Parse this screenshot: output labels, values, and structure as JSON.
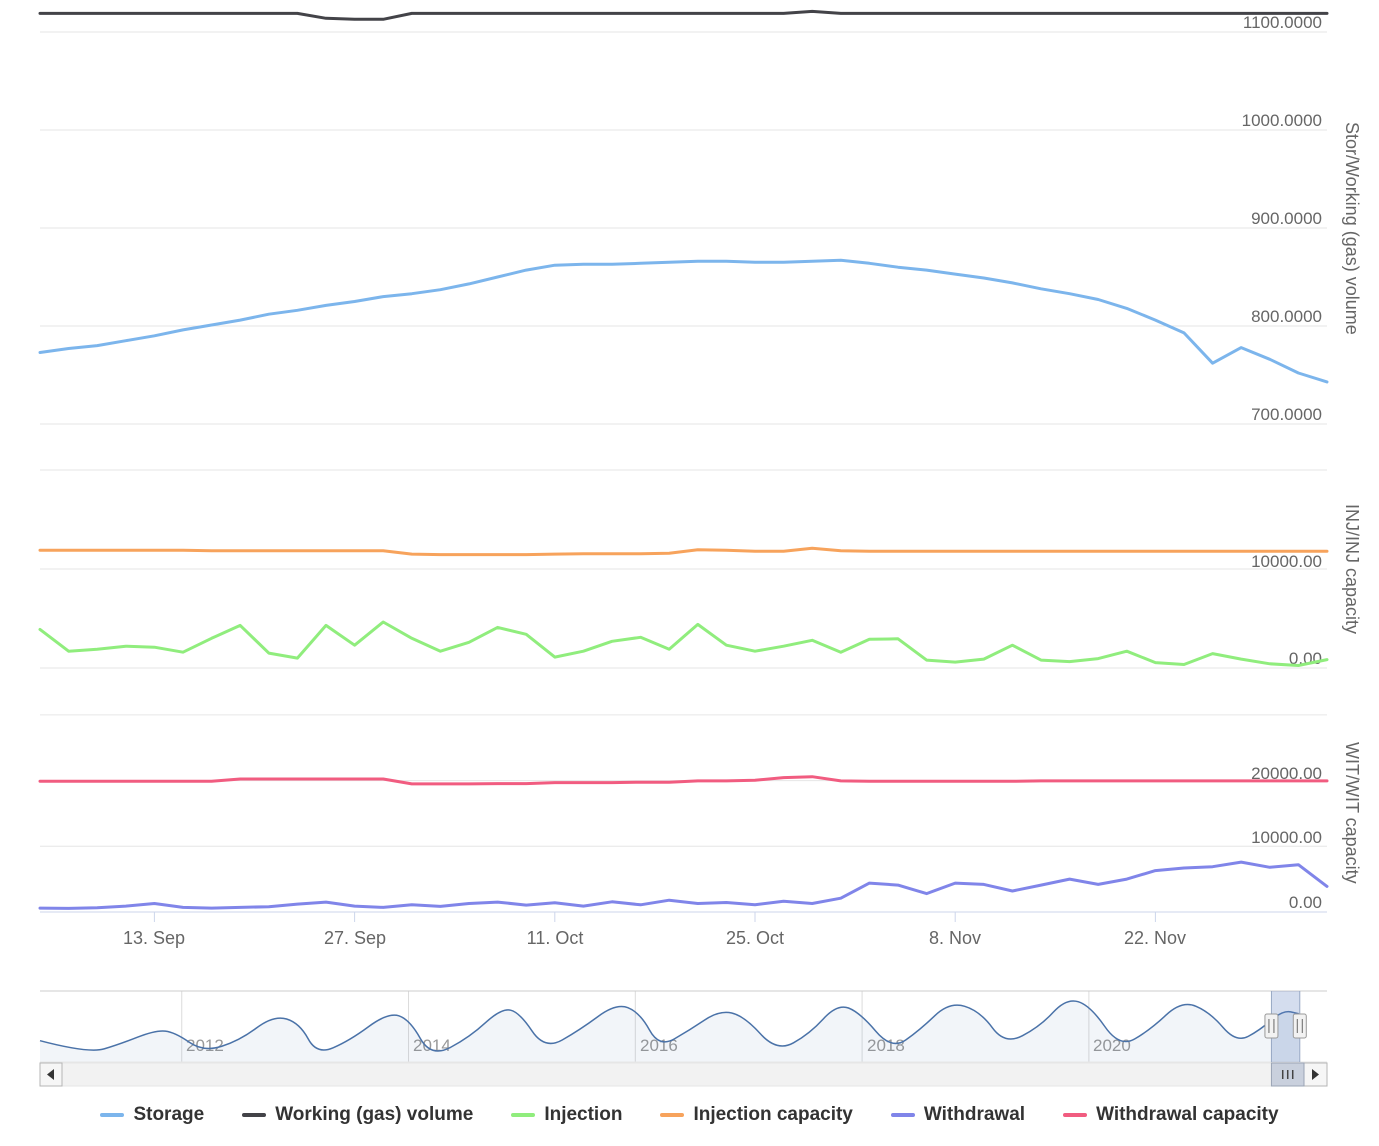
{
  "chart": {
    "background_color": "#ffffff",
    "grid_color": "#e6e6e6",
    "axis_line_color": "#ccd6eb",
    "axis_text_color": "#666666",
    "navigator_line_color": "#4a72a8",
    "navigator_mask_color": "rgba(102,133,194,0.28)"
  },
  "chart_data": {
    "type": "line",
    "x_ticks": [
      "13. Sep",
      "27. Sep",
      "11. Oct",
      "25. Oct",
      "8. Nov",
      "22. Nov"
    ],
    "x_tick_day_offsets": [
      8,
      22,
      36,
      50,
      64,
      78
    ],
    "x_range": {
      "start": "5. Sep",
      "end": "4. Dec",
      "total_days": 90,
      "point_step_days": 2
    },
    "panes": [
      {
        "axis_title": "Stor/Working (gas) volume",
        "gridlines": [
          {
            "value": 1100,
            "label": "1100.0000"
          },
          {
            "value": 1000,
            "label": "1000.0000"
          },
          {
            "value": 900,
            "label": "900.0000"
          },
          {
            "value": 800,
            "label": "800.0000"
          },
          {
            "value": 700,
            "label": "700.0000"
          }
        ]
      },
      {
        "axis_title": "INJ/INJ capacity",
        "gridlines": [
          {
            "value": 20000,
            "label": ""
          },
          {
            "value": 10000,
            "label": "10000.00"
          },
          {
            "value": 0,
            "label": "0.00"
          }
        ]
      },
      {
        "axis_title": "WIT/WIT capacity",
        "gridlines": [
          {
            "value": 30000,
            "label": ""
          },
          {
            "value": 20000,
            "label": "20000.00"
          },
          {
            "value": 10000,
            "label": "10000.00"
          },
          {
            "value": 0,
            "label": "0.00"
          }
        ]
      }
    ],
    "series": [
      {
        "name": "Storage",
        "color": "#7cb5ec",
        "pane": 0,
        "values": [
          773,
          777,
          780,
          785,
          790,
          796,
          801,
          806,
          812,
          816,
          821,
          825,
          830,
          833,
          837,
          843,
          850,
          857,
          862,
          863,
          863,
          864,
          865,
          866,
          866,
          865,
          865,
          866,
          867,
          864,
          860,
          857,
          853,
          849,
          844,
          838,
          833,
          827,
          818,
          806,
          793,
          762,
          778,
          766,
          752,
          743
        ]
      },
      {
        "name": "Working (gas) volume",
        "color": "#434348",
        "pane": 0,
        "values": [
          1119,
          1119,
          1119,
          1119,
          1119,
          1119,
          1119,
          1119,
          1119,
          1119,
          1114,
          1113,
          1113,
          1119,
          1119,
          1119,
          1119,
          1119,
          1119,
          1119,
          1119,
          1119,
          1119,
          1119,
          1119,
          1119,
          1119,
          1121,
          1119,
          1119,
          1119,
          1119,
          1119,
          1119,
          1119,
          1119,
          1119,
          1119,
          1119,
          1119,
          1119,
          1119,
          1119,
          1119,
          1119,
          1119
        ]
      },
      {
        "name": "Injection",
        "color": "#90ed7d",
        "pane": 1,
        "values": [
          3900,
          1700,
          1900,
          2200,
          2100,
          1600,
          3000,
          4300,
          1500,
          1000,
          4300,
          2300,
          4650,
          3000,
          1700,
          2600,
          4100,
          3400,
          1100,
          1700,
          2700,
          3100,
          1900,
          4400,
          2300,
          1700,
          2200,
          2800,
          1600,
          2900,
          2950,
          800,
          600,
          900,
          2300,
          800,
          650,
          950,
          1700,
          550,
          350,
          1450,
          900,
          420,
          250,
          850
        ]
      },
      {
        "name": "Injection capacity",
        "color": "#f7a35c",
        "pane": 1,
        "values": [
          11900,
          11900,
          11900,
          11900,
          11900,
          11900,
          11850,
          11850,
          11850,
          11850,
          11850,
          11850,
          11850,
          11500,
          11450,
          11450,
          11450,
          11450,
          11500,
          11550,
          11550,
          11550,
          11600,
          11950,
          11900,
          11800,
          11800,
          12100,
          11850,
          11800,
          11800,
          11800,
          11800,
          11800,
          11800,
          11800,
          11800,
          11800,
          11800,
          11800,
          11800,
          11800,
          11800,
          11800,
          11800,
          11800
        ]
      },
      {
        "name": "Withdrawal",
        "color": "#8085e9",
        "pane": 2,
        "values": [
          600,
          550,
          650,
          900,
          1300,
          700,
          600,
          700,
          800,
          1200,
          1500,
          900,
          700,
          1100,
          850,
          1300,
          1500,
          1050,
          1400,
          900,
          1550,
          1100,
          1800,
          1300,
          1450,
          1100,
          1650,
          1300,
          2100,
          4400,
          4100,
          2800,
          4400,
          4200,
          3200,
          4100,
          5000,
          4200,
          5000,
          6300,
          6700,
          6900,
          7600,
          6800,
          7200,
          3900
        ]
      },
      {
        "name": "Withdrawal capacity",
        "color": "#f15c80",
        "pane": 2,
        "values": [
          19900,
          19900,
          19900,
          19900,
          19900,
          19900,
          19900,
          20250,
          20250,
          20250,
          20250,
          20250,
          20250,
          19500,
          19500,
          19500,
          19550,
          19550,
          19700,
          19700,
          19700,
          19750,
          19750,
          19950,
          19950,
          20050,
          20450,
          20600,
          19950,
          19900,
          19900,
          19900,
          19900,
          19900,
          19900,
          19950,
          19950,
          19950,
          19950,
          19950,
          19950,
          19950,
          19950,
          19950,
          19950,
          19950
        ]
      }
    ],
    "navigator": {
      "year_tick_labels": [
        "2012",
        "2014",
        "2016",
        "2018",
        "2020"
      ],
      "year_ticks": [
        2012,
        2014,
        2016,
        2018,
        2020
      ],
      "year_min": 2010.75,
      "year_max": 2022.1,
      "selected_years": [
        2021.61,
        2021.86
      ],
      "points": [
        [
          2010.75,
          0.3
        ],
        [
          2011.18,
          0.12
        ],
        [
          2011.45,
          0.25
        ],
        [
          2011.77,
          0.45
        ],
        [
          2011.94,
          0.42
        ],
        [
          2012.19,
          0.14
        ],
        [
          2012.51,
          0.3
        ],
        [
          2012.81,
          0.66
        ],
        [
          2013.04,
          0.55
        ],
        [
          2013.19,
          0.1
        ],
        [
          2013.48,
          0.3
        ],
        [
          2013.82,
          0.7
        ],
        [
          2014.01,
          0.6
        ],
        [
          2014.2,
          0.06
        ],
        [
          2014.54,
          0.35
        ],
        [
          2014.82,
          0.76
        ],
        [
          2014.98,
          0.7
        ],
        [
          2015.2,
          0.17
        ],
        [
          2015.51,
          0.45
        ],
        [
          2015.83,
          0.83
        ],
        [
          2016.04,
          0.7
        ],
        [
          2016.21,
          0.2
        ],
        [
          2016.48,
          0.45
        ],
        [
          2016.74,
          0.73
        ],
        [
          2016.96,
          0.65
        ],
        [
          2017.25,
          0.14
        ],
        [
          2017.54,
          0.4
        ],
        [
          2017.78,
          0.82
        ],
        [
          2017.98,
          0.7
        ],
        [
          2018.26,
          0.17
        ],
        [
          2018.51,
          0.45
        ],
        [
          2018.77,
          0.85
        ],
        [
          2019.04,
          0.72
        ],
        [
          2019.26,
          0.24
        ],
        [
          2019.57,
          0.5
        ],
        [
          2019.8,
          0.9
        ],
        [
          2020.01,
          0.8
        ],
        [
          2020.27,
          0.2
        ],
        [
          2020.54,
          0.45
        ],
        [
          2020.82,
          0.87
        ],
        [
          2021.07,
          0.7
        ],
        [
          2021.3,
          0.27
        ],
        [
          2021.51,
          0.45
        ],
        [
          2021.71,
          0.73
        ],
        [
          2021.85,
          0.68
        ]
      ]
    }
  },
  "legend": {
    "items": [
      {
        "label": "Storage",
        "color": "#7cb5ec"
      },
      {
        "label": "Working (gas) volume",
        "color": "#434348"
      },
      {
        "label": "Injection",
        "color": "#90ed7d"
      },
      {
        "label": "Injection capacity",
        "color": "#f7a35c"
      },
      {
        "label": "Withdrawal",
        "color": "#8085e9"
      },
      {
        "label": "Withdrawal capacity",
        "color": "#f15c80"
      }
    ]
  }
}
